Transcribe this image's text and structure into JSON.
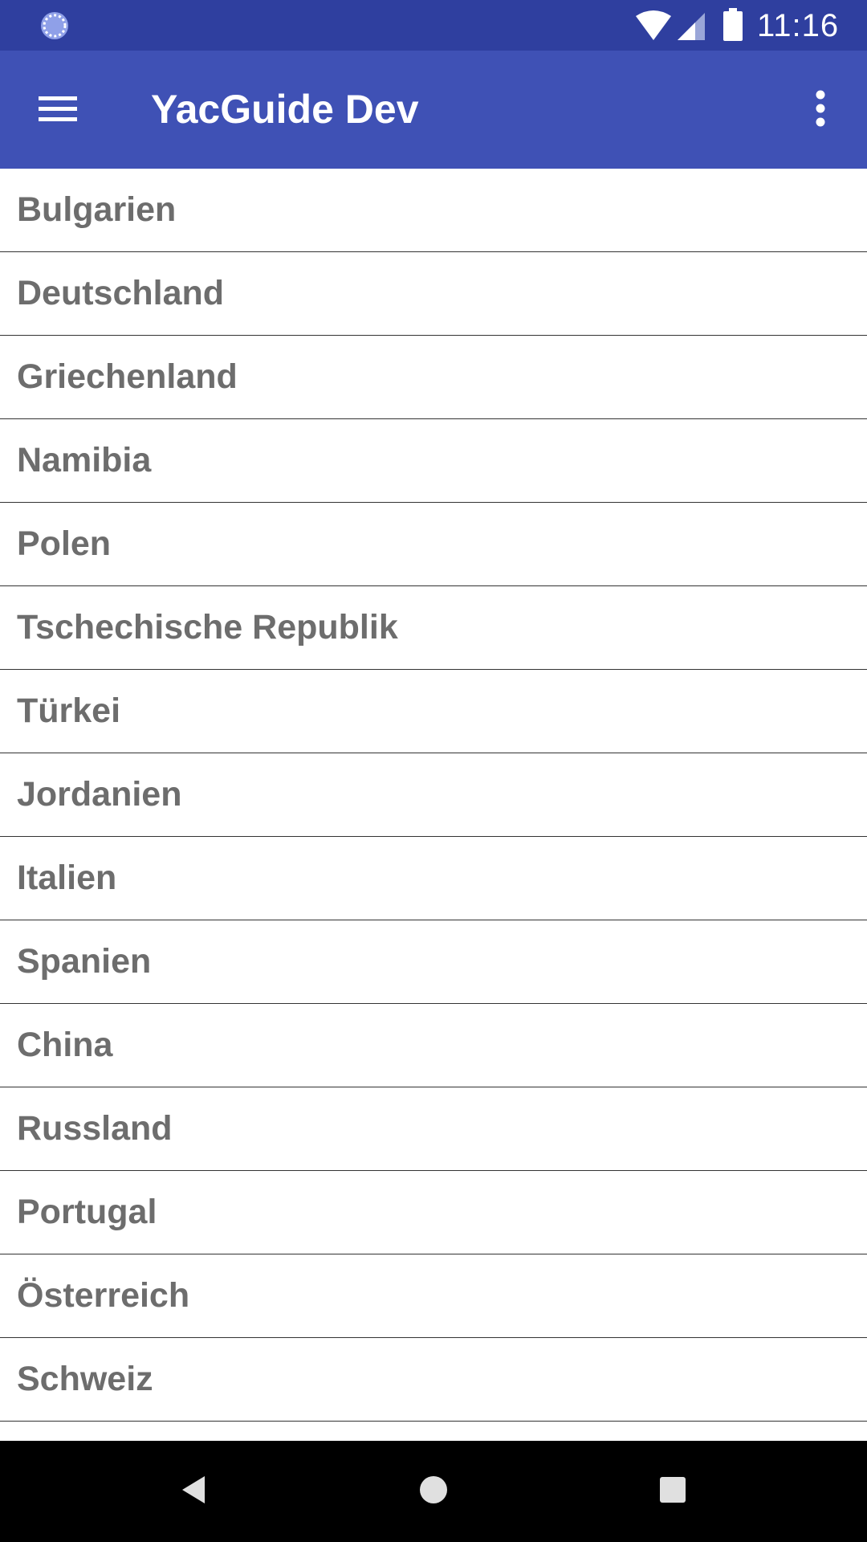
{
  "status_bar": {
    "time": "11:16",
    "icons": [
      "sync-icon",
      "wifi-icon",
      "signal-icon",
      "battery-icon"
    ]
  },
  "app_bar": {
    "title": "YacGuide Dev",
    "menu_icon": "hamburger-menu-icon",
    "overflow_icon": "more-vert-icon",
    "color": "#3f51b5"
  },
  "countries": [
    {
      "label": "Bulgarien"
    },
    {
      "label": "Deutschland"
    },
    {
      "label": "Griechenland"
    },
    {
      "label": "Namibia"
    },
    {
      "label": "Polen"
    },
    {
      "label": "Tschechische Republik"
    },
    {
      "label": "Türkei"
    },
    {
      "label": "Jordanien"
    },
    {
      "label": "Italien"
    },
    {
      "label": "Spanien"
    },
    {
      "label": "China"
    },
    {
      "label": "Russland"
    },
    {
      "label": "Portugal"
    },
    {
      "label": "Österreich"
    },
    {
      "label": "Schweiz"
    }
  ],
  "nav_bar": {
    "buttons": [
      "back-icon",
      "home-icon",
      "recents-icon"
    ]
  },
  "colors": {
    "status_bar": "#2f3f9f",
    "app_bar": "#3f51b5",
    "list_text": "#6d6d6d"
  }
}
